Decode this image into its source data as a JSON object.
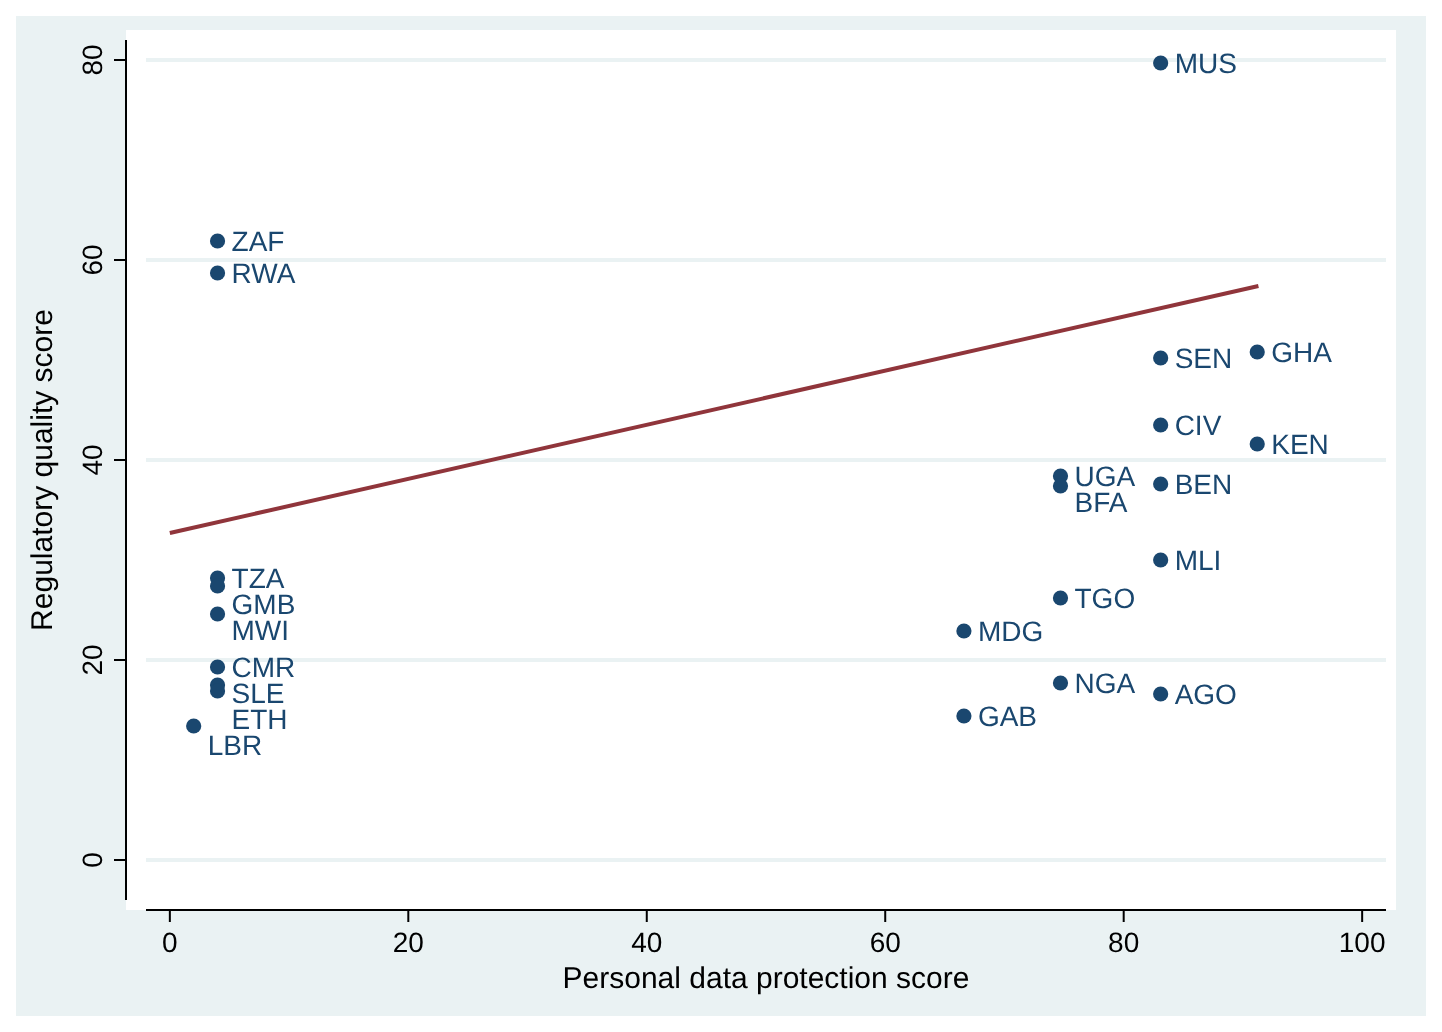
{
  "chart_data": {
    "type": "scatter",
    "xlabel": "Personal data protection score",
    "ylabel": "Regulatory quality score",
    "xlim": [
      -2,
      102
    ],
    "ylim": [
      -4,
      82
    ],
    "xticks": [
      0,
      20,
      40,
      60,
      80,
      100
    ],
    "yticks": [
      0,
      20,
      40,
      60,
      80
    ],
    "grid": "y",
    "series": [
      {
        "marker": "circle",
        "color": "#1a476f",
        "x": [
          83.1,
          4,
          4,
          91.2,
          83.1,
          83.1,
          91.2,
          74.7,
          74.7,
          83.1,
          83.1,
          74.7,
          66.6,
          74.7,
          83.1,
          66.6,
          4,
          4,
          4,
          4,
          4,
          4,
          2
        ],
        "values": [
          79.7,
          61.9,
          58.7,
          50.8,
          50.2,
          43.5,
          41.6,
          38.4,
          37.4,
          37.6,
          30,
          26.2,
          22.9,
          17.7,
          16.6,
          14.4,
          28.2,
          27.4,
          24.6,
          19.3,
          17.5,
          16.9,
          13.4
        ]
      },
      {
        "type": "line",
        "color": "#90353b",
        "x": [
          0,
          91.3
        ],
        "values": [
          32.7,
          57.4
        ]
      }
    ],
    "annotations": [
      {
        "text": "MUS",
        "x": 83.1,
        "y": 79.7
      },
      {
        "text": "ZAF",
        "x": 4,
        "y": 61.9
      },
      {
        "text": "RWA",
        "x": 4,
        "y": 58.7
      },
      {
        "text": "GHA",
        "x": 91.2,
        "y": 50.8
      },
      {
        "text": "SEN",
        "x": 83.1,
        "y": 50.2
      },
      {
        "text": "CIV",
        "x": 83.1,
        "y": 43.5
      },
      {
        "text": "KEN",
        "x": 91.2,
        "y": 41.6
      },
      {
        "text": "UGA",
        "x": 74.7,
        "y": 38.4
      },
      {
        "text": "BFA",
        "x": 74.7,
        "y": 37.4
      },
      {
        "text": "BEN",
        "x": 83.1,
        "y": 37.6
      },
      {
        "text": "MLI",
        "x": 83.1,
        "y": 30
      },
      {
        "text": "TGO",
        "x": 74.7,
        "y": 26.2
      },
      {
        "text": "MDG",
        "x": 66.6,
        "y": 22.9
      },
      {
        "text": "NGA",
        "x": 74.7,
        "y": 17.7
      },
      {
        "text": "AGO",
        "x": 83.1,
        "y": 16.6
      },
      {
        "text": "GAB",
        "x": 66.6,
        "y": 14.4
      },
      {
        "text": "TZA",
        "x": 4,
        "y": 28.2
      },
      {
        "text": "GMB",
        "x": 4,
        "y": 27.4
      },
      {
        "text": "MWI",
        "x": 4,
        "y": 24.6
      },
      {
        "text": "CMR",
        "x": 4,
        "y": 19.3
      },
      {
        "text": "SLE",
        "x": 4,
        "y": 17.5
      },
      {
        "text": "ETH",
        "x": 4,
        "y": 16.9
      },
      {
        "text": "LBR",
        "x": 2,
        "y": 13.4
      }
    ]
  }
}
